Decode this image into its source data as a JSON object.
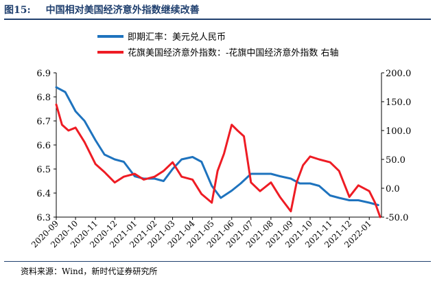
{
  "header": {
    "figure_label": "图15:",
    "title": "中国相对美国经济意外指数继续改善"
  },
  "footer": {
    "source": "资料来源：Wind，新时代证券研究所"
  },
  "colors": {
    "title": "#1f3f6e",
    "series_usd_cny": "#1e73be",
    "series_surprise_spread": "#ee1c24"
  },
  "chart_data": {
    "type": "line",
    "title": "",
    "xlabel": "",
    "ylabel": "",
    "x_ticks": [
      "2020-09",
      "2020-10",
      "2020-11",
      "2020-12",
      "2021-01",
      "2021-02",
      "2021-03",
      "2021-04",
      "2021-05",
      "2021-06",
      "2021-07",
      "2021-08",
      "2021-09",
      "2021-10",
      "2021-11",
      "2021-12",
      "2022-01"
    ],
    "ylim_left": [
      6.3,
      6.9
    ],
    "yticks_left": [
      "6.9",
      "6.8",
      "6.7",
      "6.6",
      "6.5",
      "6.4",
      "6.3"
    ],
    "ylim_right": [
      -50,
      200
    ],
    "yticks_right": [
      "200.0",
      "150.0",
      "100.0",
      "50.0",
      "0.0",
      "-50.0"
    ],
    "grid": false,
    "legend_position": "top",
    "series": [
      {
        "name": "即期汇率：美元兑人民币",
        "axis": "left",
        "x": [
          "2020-09",
          "2020-09-15",
          "2020-10",
          "2020-10-15",
          "2020-11",
          "2020-11-15",
          "2020-12",
          "2020-12-15",
          "2021-01",
          "2021-01-15",
          "2021-02",
          "2021-02-15",
          "2021-03",
          "2021-03-15",
          "2021-04",
          "2021-04-15",
          "2021-05",
          "2021-05-15",
          "2021-06",
          "2021-06-15",
          "2021-07",
          "2021-07-15",
          "2021-08",
          "2021-08-15",
          "2021-09",
          "2021-09-15",
          "2021-10",
          "2021-10-15",
          "2021-11",
          "2021-11-15",
          "2021-12",
          "2021-12-15",
          "2022-01",
          "2022-01-15"
        ],
        "values": [
          6.84,
          6.82,
          6.74,
          6.7,
          6.62,
          6.56,
          6.54,
          6.53,
          6.47,
          6.46,
          6.46,
          6.45,
          6.5,
          6.54,
          6.55,
          6.53,
          6.43,
          6.38,
          6.41,
          6.44,
          6.48,
          6.48,
          6.48,
          6.47,
          6.46,
          6.44,
          6.44,
          6.43,
          6.39,
          6.38,
          6.37,
          6.37,
          6.36,
          6.35
        ]
      },
      {
        "name": "花旗美国经济意外指数：-花旗中国经济意外指数 右轴",
        "axis": "right",
        "x": [
          "2020-09",
          "2020-09-10",
          "2020-09-20",
          "2020-10",
          "2020-10-15",
          "2020-11",
          "2020-11-15",
          "2020-12",
          "2020-12-15",
          "2021-01",
          "2021-01-15",
          "2021-02",
          "2021-02-15",
          "2021-03",
          "2021-03-15",
          "2021-04",
          "2021-04-15",
          "2021-05",
          "2021-05-10",
          "2021-05-20",
          "2021-06",
          "2021-06-10",
          "2021-06-20",
          "2021-07",
          "2021-07-15",
          "2021-08",
          "2021-08-15",
          "2021-09",
          "2021-09-10",
          "2021-09-20",
          "2021-10",
          "2021-10-15",
          "2021-11",
          "2021-11-15",
          "2021-12",
          "2021-12-15",
          "2022-01",
          "2022-01-10",
          "2022-01-18"
        ],
        "values": [
          145,
          110,
          100,
          105,
          80,
          42,
          28,
          10,
          20,
          25,
          15,
          20,
          30,
          45,
          20,
          15,
          -10,
          -25,
          30,
          60,
          110,
          100,
          90,
          10,
          -5,
          10,
          -15,
          -40,
          10,
          40,
          55,
          50,
          45,
          30,
          -15,
          5,
          -5,
          -25,
          -50
        ]
      }
    ]
  }
}
